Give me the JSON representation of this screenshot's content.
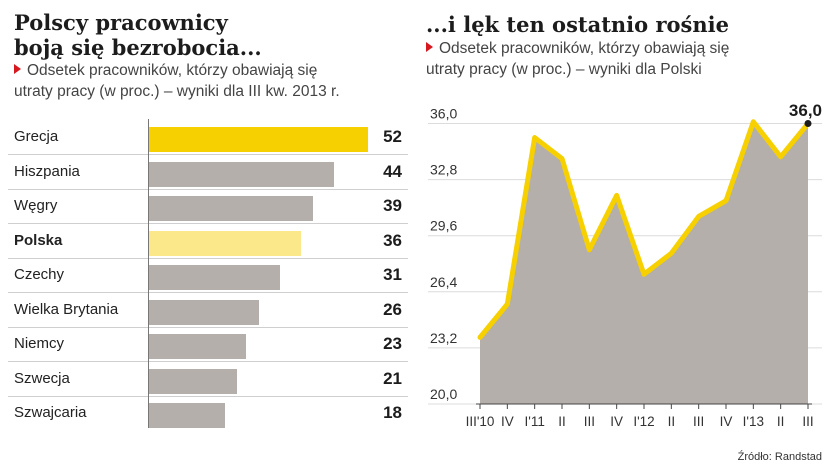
{
  "left": {
    "title_line1": "Polscy pracownicy",
    "title_line2": "boją się bezrobocia...",
    "subtitle_line1": "Odsetek pracowników, którzy obawiają się",
    "subtitle_line2": "utraty pracy (w proc.) – wyniki dla III kw. 2013 r."
  },
  "right": {
    "title": "...i lęk ten ostatnio rośnie",
    "subtitle_line1": "Odsetek pracowników, którzy obawiają się",
    "subtitle_line2": "utraty pracy (w proc.) – wyniki dla Polski"
  },
  "source": "Źródło: Randstad",
  "colors": {
    "highlight": "#f7d000",
    "poland": "#fae88a",
    "bar": "#b4afaa",
    "area": "#b4afaa",
    "line": "#f7d000"
  },
  "chart_data": [
    {
      "type": "bar",
      "orientation": "horizontal",
      "categories": [
        "Grecja",
        "Hiszpania",
        "Węgry",
        "Polska",
        "Czechy",
        "Wielka Brytania",
        "Niemcy",
        "Szwecja",
        "Szwajcaria"
      ],
      "values": [
        52,
        44,
        39,
        36,
        31,
        26,
        23,
        21,
        18
      ],
      "value_labels": [
        "52",
        "44",
        "39",
        "36",
        "31",
        "26",
        "23",
        "21",
        "18"
      ],
      "highlight": "Polska"
    },
    {
      "type": "area",
      "x_labels": [
        "III'10",
        "IV",
        "I'11",
        "II",
        "III",
        "IV",
        "I'12",
        "II",
        "III",
        "IV",
        "I'13",
        "II",
        "III"
      ],
      "values": [
        23.8,
        25.7,
        35.2,
        34.0,
        28.8,
        31.9,
        27.4,
        28.6,
        30.7,
        31.6,
        36.1,
        34.1,
        36.0
      ],
      "y_ticks": [
        "36,0",
        "32,8",
        "29,6",
        "26,4",
        "23,2",
        "20,0"
      ],
      "ylim": [
        20.0,
        37.0
      ],
      "end_label": "36,0",
      "grid": true
    }
  ]
}
